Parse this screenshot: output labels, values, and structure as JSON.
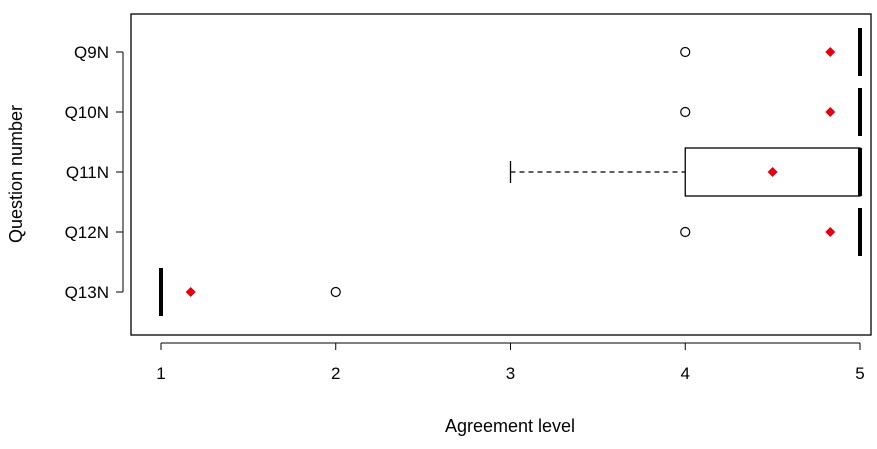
{
  "chart_data": {
    "type": "boxplot",
    "orientation": "horizontal",
    "xlabel": "Agreement level",
    "ylabel": "Question number",
    "xlim": [
      1,
      5
    ],
    "xticks": [
      "1",
      "2",
      "3",
      "4",
      "5"
    ],
    "categories": [
      "Q9N",
      "Q10N",
      "Q11N",
      "Q12N",
      "Q13N"
    ],
    "boxes": [
      {
        "label": "Q9N",
        "q1": 5,
        "median": 5,
        "q3": 5,
        "whisker_low": 5,
        "whisker_high": 5,
        "outliers": [
          4
        ],
        "mean": 4.83
      },
      {
        "label": "Q10N",
        "q1": 5,
        "median": 5,
        "q3": 5,
        "whisker_low": 5,
        "whisker_high": 5,
        "outliers": [
          4
        ],
        "mean": 4.83
      },
      {
        "label": "Q11N",
        "q1": 4,
        "median": 5,
        "q3": 5,
        "whisker_low": 3,
        "whisker_high": 5,
        "outliers": [],
        "mean": 4.5
      },
      {
        "label": "Q12N",
        "q1": 5,
        "median": 5,
        "q3": 5,
        "whisker_low": 5,
        "whisker_high": 5,
        "outliers": [
          4
        ],
        "mean": 4.83
      },
      {
        "label": "Q13N",
        "q1": 1,
        "median": 1,
        "q3": 1,
        "whisker_low": 1,
        "whisker_high": 1,
        "outliers": [
          2
        ],
        "mean": 1.17
      }
    ],
    "mean_marker_color": "#e3000f",
    "box_color": "#000000",
    "grid": false
  }
}
